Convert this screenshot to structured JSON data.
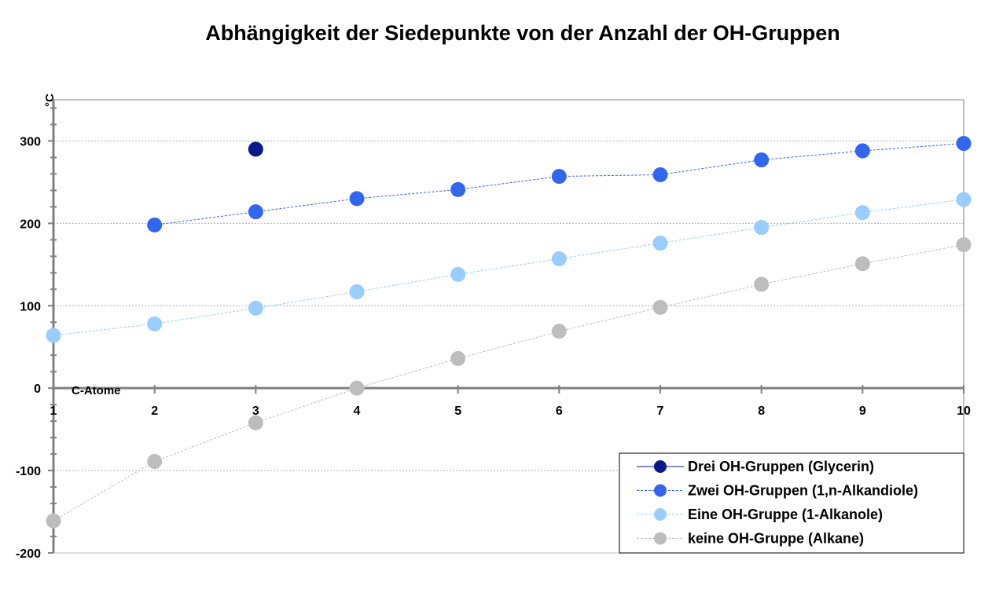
{
  "chart_data": {
    "type": "line",
    "title": "Abhängigkeit der Siedepunkte von der Anzahl der OH-Gruppen",
    "xlabel": "C-Atome",
    "ylabel": "°C",
    "xlim": [
      1,
      10
    ],
    "ylim": [
      -200,
      350
    ],
    "x_ticks": [
      1,
      2,
      3,
      4,
      5,
      6,
      7,
      8,
      9,
      10
    ],
    "y_ticks": [
      -200,
      -100,
      0,
      100,
      200,
      300
    ],
    "grid": true,
    "legend_position": "bottom-right",
    "series": [
      {
        "name": "Drei OH-Gruppen (Glycerin)",
        "color": "#0a1a8c",
        "x": [
          3
        ],
        "y": [
          290
        ]
      },
      {
        "name": "Zwei OH-Gruppen (1,n-Alkandiole)",
        "color": "#3366ee",
        "x": [
          2,
          3,
          4,
          5,
          6,
          7,
          8,
          9,
          10
        ],
        "y": [
          198,
          214,
          230,
          241,
          257,
          259,
          277,
          288,
          297
        ]
      },
      {
        "name": "Eine OH-Gruppe (1-Alkanole)",
        "color": "#99ccff",
        "x": [
          1,
          2,
          3,
          4,
          5,
          6,
          7,
          8,
          9,
          10
        ],
        "y": [
          64,
          78,
          97,
          117,
          138,
          157,
          176,
          195,
          213,
          229
        ]
      },
      {
        "name": "keine OH-Gruppe (Alkane)",
        "color": "#bdbdbd",
        "x": [
          1,
          2,
          3,
          4,
          5,
          6,
          7,
          8,
          9,
          10
        ],
        "y": [
          -161,
          -89,
          -42,
          0,
          36,
          69,
          98,
          126,
          151,
          174
        ]
      }
    ]
  }
}
